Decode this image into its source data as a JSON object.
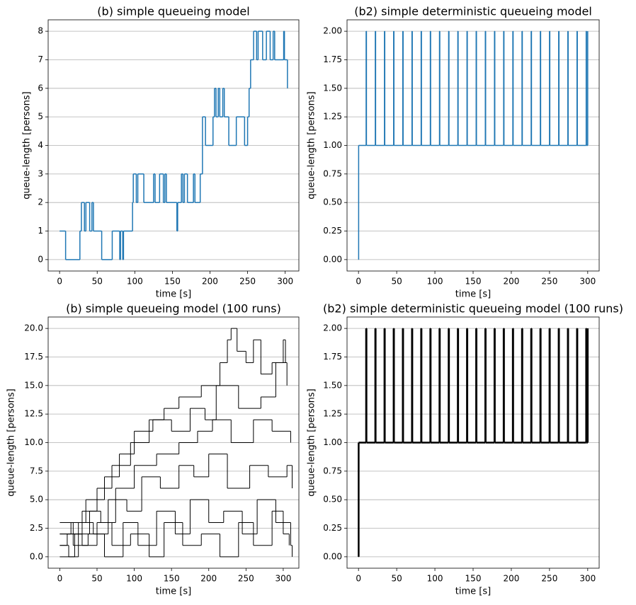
{
  "chart_data": [
    {
      "type": "line",
      "drawstyle": "steps-post",
      "title": "(b) simple queueing model",
      "xlabel": "time [s]",
      "ylabel": "queue-length [persons]",
      "xlim": [
        -15.2,
        318.2
      ],
      "ylim": [
        -0.4,
        8.4
      ],
      "xticks": [
        0,
        50,
        100,
        150,
        200,
        250,
        300
      ],
      "yticks": [
        0,
        1,
        2,
        3,
        4,
        5,
        6,
        7,
        8
      ],
      "grid": "y",
      "series": [
        {
          "color": "#1f77b4",
          "linewidth": 1.5,
          "x": [
            0,
            8,
            27,
            29,
            33,
            35,
            40,
            43,
            45,
            56,
            70,
            80,
            81,
            84,
            85,
            97,
            98,
            102,
            104,
            112,
            125,
            127,
            133,
            138,
            140,
            142,
            156,
            157,
            162,
            164,
            166,
            170,
            178,
            180,
            187,
            190,
            194,
            204,
            206,
            208,
            211,
            213,
            217,
            219,
            225,
            235,
            246,
            250,
            252,
            254,
            258,
            262,
            264,
            270,
            275,
            280,
            284,
            286,
            298,
            299,
            303
          ],
          "values": [
            1,
            0,
            1,
            2,
            1,
            2,
            1,
            2,
            1,
            0,
            1,
            0,
            1,
            0,
            1,
            2,
            3,
            2,
            3,
            2,
            3,
            2,
            3,
            2,
            3,
            2,
            1,
            2,
            3,
            2,
            3,
            2,
            3,
            2,
            3,
            5,
            4,
            5,
            6,
            5,
            6,
            5,
            6,
            5,
            4,
            5,
            4,
            5,
            6,
            7,
            8,
            7,
            8,
            7,
            8,
            7,
            8,
            7,
            8,
            7,
            6
          ]
        }
      ]
    },
    {
      "type": "line",
      "drawstyle": "steps-post",
      "title": "(b2) simple deterministic queueing model",
      "xlabel": "time [s]",
      "ylabel": "queue-length [persons]",
      "xlim": [
        -15,
        315
      ],
      "ylim": [
        -0.1,
        2.1
      ],
      "xticks": [
        0,
        50,
        100,
        150,
        200,
        250,
        300
      ],
      "yticks": [
        {
          "value": 0,
          "label": "0.00"
        },
        {
          "value": 0.25,
          "label": "0.25"
        },
        {
          "value": 0.5,
          "label": "0.50"
        },
        {
          "value": 0.75,
          "label": "0.75"
        },
        {
          "value": 1,
          "label": "1.00"
        },
        {
          "value": 1.25,
          "label": "1.25"
        },
        {
          "value": 1.5,
          "label": "1.50"
        },
        {
          "value": 1.75,
          "label": "1.75"
        },
        {
          "value": 2,
          "label": "2.00"
        }
      ],
      "grid": "y",
      "series": [
        {
          "color": "#1f77b4",
          "linewidth": 1.5,
          "x": [
            0,
            0.2,
            10,
            10.4,
            22,
            22.4,
            34,
            34.4,
            46,
            46.4,
            58,
            58.4,
            70,
            70.4,
            82,
            82.4,
            94,
            94.4,
            106,
            106.4,
            118,
            118.4,
            130,
            130.4,
            142,
            142.4,
            154,
            154.4,
            166,
            166.4,
            178,
            178.4,
            190,
            190.4,
            202,
            202.4,
            214,
            214.4,
            226,
            226.4,
            238,
            238.4,
            250,
            250.4,
            262,
            262.4,
            274,
            274.4,
            286,
            286.4,
            298,
            298.4,
            300
          ],
          "values": [
            0,
            1,
            2,
            1,
            2,
            1,
            2,
            1,
            2,
            1,
            2,
            1,
            2,
            1,
            2,
            1,
            2,
            1,
            2,
            1,
            2,
            1,
            2,
            1,
            2,
            1,
            2,
            1,
            2,
            1,
            2,
            1,
            2,
            1,
            2,
            1,
            2,
            1,
            2,
            1,
            2,
            1,
            2,
            1,
            2,
            1,
            2,
            1,
            2,
            1,
            2,
            1,
            2
          ]
        }
      ]
    },
    {
      "type": "line",
      "drawstyle": "steps-post",
      "title": "(b) simple queueing model (100 runs)",
      "xlabel": "time [s]",
      "ylabel": "queue-length [persons]",
      "xlim": [
        -15.6,
        321
      ],
      "ylim": [
        -1,
        21
      ],
      "xticks": [
        0,
        50,
        100,
        150,
        200,
        250,
        300
      ],
      "yticks": [
        {
          "value": 0,
          "label": "0.0"
        },
        {
          "value": 2.5,
          "label": "2.5"
        },
        {
          "value": 5,
          "label": "5.0"
        },
        {
          "value": 7.5,
          "label": "7.5"
        },
        {
          "value": 10,
          "label": "10.0"
        },
        {
          "value": 12.5,
          "label": "12.5"
        },
        {
          "value": 15,
          "label": "15.0"
        },
        {
          "value": 17.5,
          "label": "17.5"
        },
        {
          "value": 20,
          "label": "20.0"
        }
      ],
      "grid": "y",
      "series": [
        {
          "color": "#000000",
          "linewidth": 1,
          "x": [
            0,
            10,
            30,
            50,
            70,
            95,
            120,
            140,
            160,
            190,
            215,
            225,
            230,
            238,
            250,
            260,
            270,
            285,
            300,
            303
          ],
          "values": [
            1,
            2,
            4,
            6,
            8,
            10,
            12,
            13,
            14,
            15,
            17,
            19,
            20,
            18,
            17,
            19,
            16,
            17,
            19,
            17
          ]
        },
        {
          "color": "#000000",
          "linewidth": 1,
          "x": [
            0,
            15,
            35,
            60,
            80,
            100,
            125,
            150,
            175,
            195,
            210,
            240,
            270,
            290,
            305
          ],
          "values": [
            2,
            3,
            5,
            7,
            9,
            11,
            12,
            11,
            13,
            12,
            15,
            13,
            14,
            17,
            15
          ]
        },
        {
          "color": "#000000",
          "linewidth": 1,
          "x": [
            0,
            20,
            40,
            55,
            75,
            100,
            130,
            160,
            185,
            205,
            230,
            260,
            285,
            310
          ],
          "values": [
            0,
            2,
            4,
            3,
            6,
            8,
            9,
            10,
            11,
            12,
            10,
            12,
            11,
            10
          ]
        },
        {
          "color": "#000000",
          "linewidth": 1,
          "x": [
            0,
            12,
            25,
            45,
            65,
            90,
            110,
            135,
            160,
            180,
            200,
            225,
            255,
            280,
            305,
            312
          ],
          "values": [
            1,
            0,
            3,
            2,
            5,
            4,
            7,
            6,
            8,
            7,
            9,
            6,
            8,
            7,
            8,
            6
          ]
        },
        {
          "color": "#000000",
          "linewidth": 1,
          "x": [
            0,
            18,
            38,
            60,
            85,
            105,
            130,
            155,
            175,
            200,
            220,
            245,
            265,
            290,
            310,
            312
          ],
          "values": [
            3,
            1,
            2,
            0,
            3,
            1,
            4,
            2,
            5,
            3,
            4,
            2,
            5,
            3,
            1,
            0
          ]
        },
        {
          "color": "#000000",
          "linewidth": 1,
          "x": [
            0,
            30,
            50,
            70,
            95,
            120,
            140,
            165,
            190,
            215,
            240,
            260,
            285,
            300,
            308
          ],
          "values": [
            2,
            1,
            3,
            1,
            2,
            0,
            3,
            1,
            2,
            0,
            3,
            1,
            4,
            2,
            1
          ]
        }
      ]
    },
    {
      "type": "line",
      "drawstyle": "steps-post",
      "title": "(b2) simple deterministic queueing model (100 runs)",
      "xlabel": "time [s]",
      "ylabel": "queue-length [persons]",
      "xlim": [
        -15,
        315
      ],
      "ylim": [
        -0.1,
        2.1
      ],
      "xticks": [
        0,
        50,
        100,
        150,
        200,
        250,
        300
      ],
      "yticks": [
        {
          "value": 0,
          "label": "0.00"
        },
        {
          "value": 0.25,
          "label": "0.25"
        },
        {
          "value": 0.5,
          "label": "0.50"
        },
        {
          "value": 0.75,
          "label": "0.75"
        },
        {
          "value": 1,
          "label": "1.00"
        },
        {
          "value": 1.25,
          "label": "1.25"
        },
        {
          "value": 1.5,
          "label": "1.50"
        },
        {
          "value": 1.75,
          "label": "1.75"
        },
        {
          "value": 2,
          "label": "2.00"
        }
      ],
      "grid": "y",
      "series": [
        {
          "color": "#000000",
          "linewidth": 2.5,
          "x": [
            0,
            0.2,
            10,
            10.4,
            22,
            22.4,
            34,
            34.4,
            46,
            46.4,
            58,
            58.4,
            70,
            70.4,
            82,
            82.4,
            94,
            94.4,
            106,
            106.4,
            118,
            118.4,
            130,
            130.4,
            142,
            142.4,
            154,
            154.4,
            166,
            166.4,
            178,
            178.4,
            190,
            190.4,
            202,
            202.4,
            214,
            214.4,
            226,
            226.4,
            238,
            238.4,
            250,
            250.4,
            262,
            262.4,
            274,
            274.4,
            286,
            286.4,
            298,
            298.4,
            300
          ],
          "values": [
            0,
            1,
            2,
            1,
            2,
            1,
            2,
            1,
            2,
            1,
            2,
            1,
            2,
            1,
            2,
            1,
            2,
            1,
            2,
            1,
            2,
            1,
            2,
            1,
            2,
            1,
            2,
            1,
            2,
            1,
            2,
            1,
            2,
            1,
            2,
            1,
            2,
            1,
            2,
            1,
            2,
            1,
            2,
            1,
            2,
            1,
            2,
            1,
            2,
            1,
            2,
            1,
            2
          ]
        }
      ]
    }
  ]
}
